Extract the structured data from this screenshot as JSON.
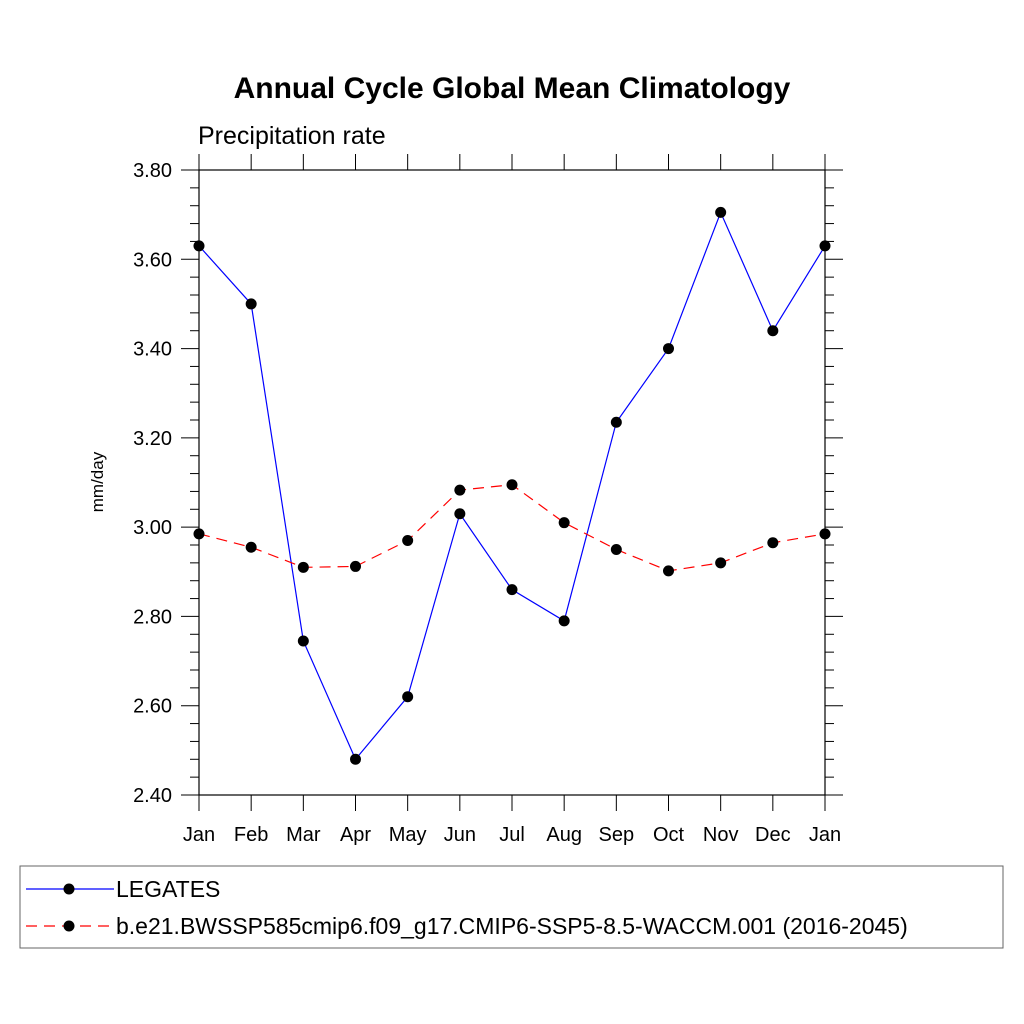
{
  "chart_data": {
    "type": "line",
    "title": "Annual Cycle Global Mean Climatology",
    "subtitle": "Precipitation rate",
    "xlabel": "",
    "ylabel": "mm/day",
    "ylim": [
      2.4,
      3.8
    ],
    "y_ticks": [
      "2.40",
      "2.60",
      "2.80",
      "3.00",
      "3.20",
      "3.40",
      "3.60",
      "3.80"
    ],
    "categories": [
      "Jan",
      "Feb",
      "Mar",
      "Apr",
      "May",
      "Jun",
      "Jul",
      "Aug",
      "Sep",
      "Oct",
      "Nov",
      "Dec",
      "Jan"
    ],
    "legend_placement": "bottom",
    "grid": false,
    "series": [
      {
        "name": "LEGATES",
        "color": "#0000ff",
        "dash": "solid",
        "values": [
          3.63,
          3.5,
          2.745,
          2.48,
          2.62,
          3.03,
          2.86,
          2.79,
          3.235,
          3.4,
          3.705,
          3.44,
          3.63
        ]
      },
      {
        "name": "b.e21.BWSSP585cmip6.f09_g17.CMIP6-SSP5-8.5-WACCM.001 (2016-2045)",
        "color": "#ff0000",
        "dash": "dashed",
        "values": [
          2.985,
          2.955,
          2.91,
          2.912,
          2.97,
          3.083,
          3.095,
          3.01,
          2.95,
          2.902,
          2.92,
          2.965,
          2.985
        ]
      }
    ]
  }
}
